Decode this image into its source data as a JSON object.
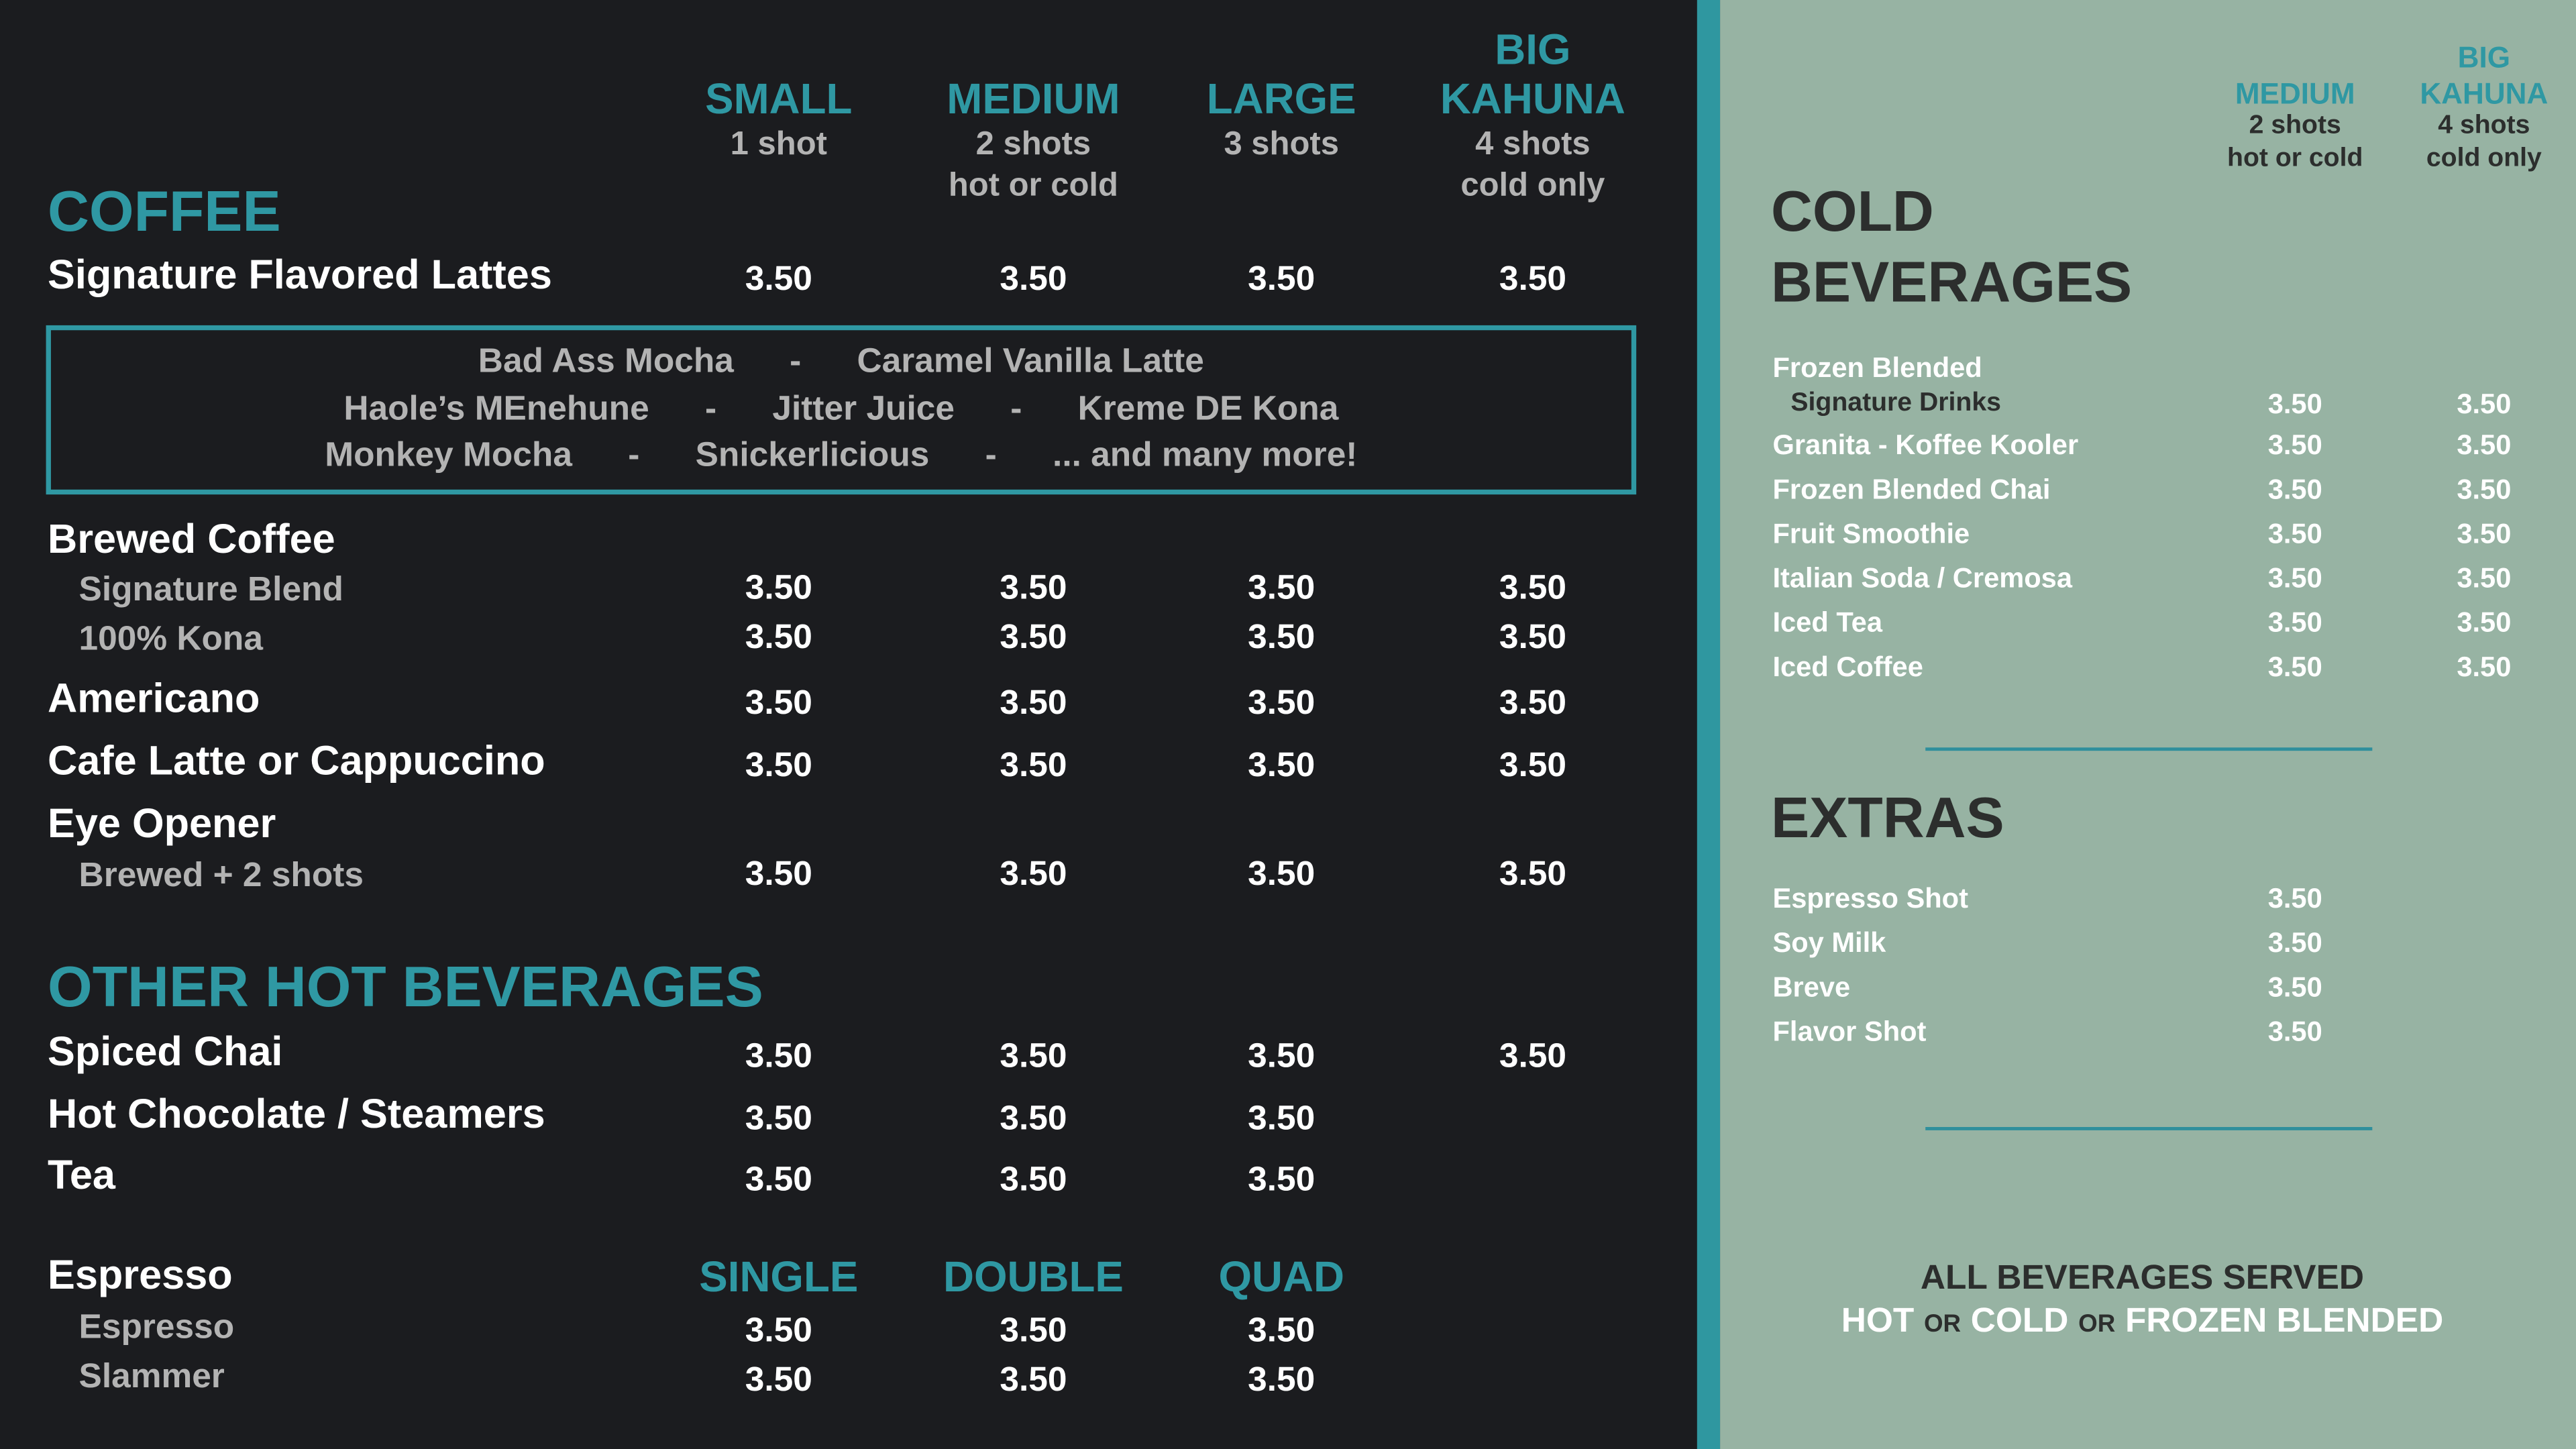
{
  "menu": {
    "size_headers": [
      {
        "name": [
          "SMALL"
        ],
        "details": [
          "1 shot"
        ]
      },
      {
        "name": [
          "MEDIUM"
        ],
        "details": [
          "2 shots",
          "hot or cold"
        ]
      },
      {
        "name": [
          "LARGE"
        ],
        "details": [
          "3 shots"
        ]
      },
      {
        "name": [
          "BIG",
          "KAHUNA"
        ],
        "details": [
          "4 shots",
          "cold only"
        ]
      }
    ],
    "coffee": {
      "title": "COFFEE",
      "items": [
        {
          "name": "Signature Flavored Lattes",
          "prices": [
            "3.50",
            "3.50",
            "3.50",
            "3.50"
          ]
        },
        {
          "name": "Brewed Coffee",
          "subitems": [
            {
              "name": "Signature Blend",
              "prices": [
                "3.50",
                "3.50",
                "3.50",
                "3.50"
              ]
            },
            {
              "name": "100% Kona",
              "prices": [
                "3.50",
                "3.50",
                "3.50",
                "3.50"
              ]
            }
          ]
        },
        {
          "name": "Americano",
          "prices": [
            "3.50",
            "3.50",
            "3.50",
            "3.50"
          ]
        },
        {
          "name": "Cafe Latte or Cappuccino",
          "prices": [
            "3.50",
            "3.50",
            "3.50",
            "3.50"
          ]
        },
        {
          "name": "Eye Opener",
          "subitems": [
            {
              "name": "Brewed + 2 shots",
              "prices": [
                "3.50",
                "3.50",
                "3.50",
                "3.50"
              ]
            }
          ]
        }
      ]
    },
    "flavors": {
      "separator": "-",
      "lines": [
        [
          "Bad Ass Mocha",
          "Caramel Vanilla Latte"
        ],
        [
          "Haole’s MEnehune",
          "Jitter Juice",
          "Kreme DE Kona"
        ],
        [
          "Monkey Mocha",
          "Snickerlicious",
          "... and many more!"
        ]
      ]
    },
    "other_hot_beverages": {
      "title": "OTHER HOT BEVERAGES",
      "items": [
        {
          "name": "Spiced Chai",
          "prices": [
            "3.50",
            "3.50",
            "3.50",
            "3.50"
          ]
        },
        {
          "name": "Hot Chocolate / Steamers",
          "prices": [
            "3.50",
            "3.50",
            "3.50"
          ]
        },
        {
          "name": "Tea",
          "prices": [
            "3.50",
            "3.50",
            "3.50"
          ]
        }
      ]
    },
    "espresso": {
      "name": "Espresso",
      "size_headers": [
        "SINGLE",
        "DOUBLE",
        "QUAD"
      ],
      "subitems": [
        {
          "name": "Espresso",
          "prices": [
            "3.50",
            "3.50",
            "3.50"
          ]
        },
        {
          "name": "Slammer",
          "prices": [
            "3.50",
            "3.50",
            "3.50"
          ]
        }
      ]
    }
  },
  "cold_menu": {
    "size_headers": [
      {
        "name": [
          "MEDIUM"
        ],
        "details": [
          "2 shots",
          "hot or cold"
        ]
      },
      {
        "name": [
          "BIG",
          "KAHUNA"
        ],
        "details": [
          "4 shots",
          "cold only"
        ]
      }
    ],
    "cold_beverages": {
      "title": [
        "COLD",
        "BEVERAGES"
      ],
      "items": [
        {
          "name": "Frozen Blended",
          "subname": "Signature Drinks",
          "prices": [
            "3.50",
            "3.50"
          ]
        },
        {
          "name": "Granita - Koffee Kooler",
          "prices": [
            "3.50",
            "3.50"
          ]
        },
        {
          "name": "Frozen Blended Chai",
          "prices": [
            "3.50",
            "3.50"
          ]
        },
        {
          "name": "Fruit Smoothie",
          "prices": [
            "3.50",
            "3.50"
          ]
        },
        {
          "name": "Italian Soda / Cremosa",
          "prices": [
            "3.50",
            "3.50"
          ]
        },
        {
          "name": "Iced Tea",
          "prices": [
            "3.50",
            "3.50"
          ]
        },
        {
          "name": "Iced Coffee",
          "prices": [
            "3.50",
            "3.50"
          ]
        }
      ]
    },
    "extras": {
      "title": "EXTRAS",
      "items": [
        {
          "name": "Espresso Shot",
          "price": "3.50"
        },
        {
          "name": "Soy Milk",
          "price": "3.50"
        },
        {
          "name": "Breve",
          "price": "3.50"
        },
        {
          "name": "Flavor Shot",
          "price": "3.50"
        }
      ]
    },
    "footer": {
      "line1": "ALL BEVERAGES SERVED",
      "line2": [
        "HOT",
        "OR",
        "COLD",
        "OR",
        "FROZEN BLENDED"
      ]
    }
  }
}
